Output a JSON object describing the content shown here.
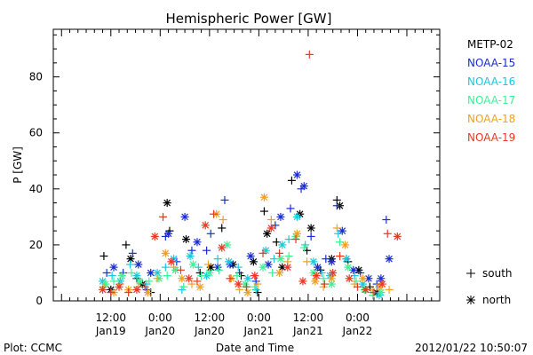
{
  "chart_data": {
    "type": "scatter",
    "title": "Hemispheric Power [GW]",
    "xlabel": "Date and Time",
    "ylabel": "P [GW]",
    "ylim": [
      0,
      97
    ],
    "xlim": [
      -2,
      92
    ],
    "x_unit": "hours since 2012-01-19 00:00",
    "yticks": [
      0,
      20,
      40,
      60,
      80
    ],
    "xticks": [
      {
        "x": 12,
        "label": "12:00",
        "sublabel": "Jan19"
      },
      {
        "x": 24,
        "label": "0:00",
        "sublabel": "Jan20"
      },
      {
        "x": 36,
        "label": "12:00",
        "sublabel": "Jan20"
      },
      {
        "x": 48,
        "label": "0:00",
        "sublabel": "Jan21"
      },
      {
        "x": 60,
        "label": "12:00",
        "sublabel": "Jan21"
      },
      {
        "x": 72,
        "label": "0:00",
        "sublabel": "Jan22"
      }
    ],
    "legend_position": "right",
    "symbol_legend": {
      "south": "south",
      "north": "north"
    },
    "footer_left": "Plot: CCMC",
    "footer_right": "2012/01/22 10:50:07",
    "series": [
      {
        "name": "METP-02",
        "color": "#000000",
        "points": [
          [
            10.3,
            16,
            "s"
          ],
          [
            12.0,
            4,
            "n"
          ],
          [
            15.7,
            20,
            "s"
          ],
          [
            16.8,
            15,
            "n"
          ],
          [
            18.3,
            8,
            "s"
          ],
          [
            19.7,
            6,
            "n"
          ],
          [
            21.7,
            3,
            "s"
          ],
          [
            25.7,
            35,
            "n"
          ],
          [
            26.3,
            25,
            "s"
          ],
          [
            30.3,
            22,
            "n"
          ],
          [
            33.7,
            10,
            "s"
          ],
          [
            36.3,
            12,
            "n"
          ],
          [
            39.0,
            26,
            "s"
          ],
          [
            41.7,
            13,
            "n"
          ],
          [
            43.7,
            9,
            "s"
          ],
          [
            46.7,
            14,
            "n"
          ],
          [
            47.7,
            3,
            "s"
          ],
          [
            49.3,
            32,
            "s"
          ],
          [
            50.0,
            24,
            "n"
          ],
          [
            52.3,
            21,
            "s"
          ],
          [
            53.7,
            12,
            "n"
          ],
          [
            56.0,
            43,
            "s"
          ],
          [
            58.0,
            31,
            "n"
          ],
          [
            59.7,
            18,
            "s"
          ],
          [
            60.7,
            26,
            "n"
          ],
          [
            63.0,
            11,
            "s"
          ],
          [
            65.7,
            15,
            "n"
          ],
          [
            67.0,
            36,
            "s"
          ],
          [
            67.7,
            34,
            "n"
          ],
          [
            69.7,
            14,
            "s"
          ],
          [
            72.3,
            11,
            "n"
          ],
          [
            75.0,
            5,
            "s"
          ],
          [
            76.7,
            3,
            "n"
          ]
        ]
      },
      {
        "name": "NOAA-15",
        "color": "#1a2dd0",
        "points": [
          [
            11.0,
            10,
            "s"
          ],
          [
            12.7,
            12,
            "n"
          ],
          [
            15.0,
            10,
            "s"
          ],
          [
            17.3,
            17,
            "s"
          ],
          [
            18.7,
            13,
            "n"
          ],
          [
            20.7,
            4,
            "s"
          ],
          [
            21.7,
            10,
            "n"
          ],
          [
            25.3,
            23,
            "s"
          ],
          [
            26.0,
            24,
            "n"
          ],
          [
            28.0,
            14,
            "s"
          ],
          [
            30.0,
            30,
            "n"
          ],
          [
            31.7,
            18,
            "s"
          ],
          [
            33.0,
            21,
            "n"
          ],
          [
            35.3,
            18,
            "s"
          ],
          [
            36.3,
            24,
            "s"
          ],
          [
            38.0,
            12,
            "n"
          ],
          [
            39.7,
            36,
            "s"
          ],
          [
            41.0,
            13,
            "n"
          ],
          [
            43.3,
            10,
            "s"
          ],
          [
            46.0,
            16,
            "n"
          ],
          [
            47.3,
            7,
            "s"
          ],
          [
            50.3,
            13,
            "n"
          ],
          [
            52.0,
            27,
            "s"
          ],
          [
            53.3,
            30,
            "n"
          ],
          [
            55.7,
            33,
            "s"
          ],
          [
            57.3,
            45,
            "n"
          ],
          [
            58.3,
            40,
            "s"
          ],
          [
            59.0,
            41,
            "n"
          ],
          [
            60.7,
            23,
            "s"
          ],
          [
            62.3,
            12,
            "n"
          ],
          [
            64.3,
            15,
            "s"
          ],
          [
            65.7,
            14,
            "n"
          ],
          [
            67.0,
            34,
            "s"
          ],
          [
            68.3,
            25,
            "n"
          ],
          [
            69.3,
            15,
            "s"
          ],
          [
            71.0,
            11,
            "n"
          ],
          [
            72.7,
            10,
            "s"
          ],
          [
            74.7,
            8,
            "n"
          ],
          [
            76.7,
            6,
            "s"
          ],
          [
            77.7,
            8,
            "n"
          ],
          [
            79.0,
            29,
            "s"
          ],
          [
            79.7,
            15,
            "n"
          ]
        ]
      },
      {
        "name": "NOAA-16",
        "color": "#18c8e0",
        "points": [
          [
            10.0,
            7,
            "n"
          ],
          [
            12.3,
            9,
            "s"
          ],
          [
            14.3,
            7,
            "n"
          ],
          [
            16.7,
            13,
            "s"
          ],
          [
            18.3,
            9,
            "n"
          ],
          [
            20.7,
            6,
            "s"
          ],
          [
            23.3,
            10,
            "n"
          ],
          [
            25.3,
            12,
            "s"
          ],
          [
            27.3,
            15,
            "n"
          ],
          [
            29.3,
            4,
            "s"
          ],
          [
            31.3,
            16,
            "n"
          ],
          [
            33.3,
            12,
            "s"
          ],
          [
            35.3,
            9,
            "n"
          ],
          [
            38.0,
            15,
            "s"
          ],
          [
            40.7,
            14,
            "n"
          ],
          [
            43.0,
            12,
            "s"
          ],
          [
            45.3,
            8,
            "n"
          ],
          [
            47.3,
            4,
            "s"
          ],
          [
            49.7,
            18,
            "n"
          ],
          [
            51.7,
            15,
            "s"
          ],
          [
            53.7,
            20,
            "n"
          ],
          [
            55.3,
            22,
            "s"
          ],
          [
            57.3,
            30,
            "n"
          ],
          [
            59.3,
            20,
            "s"
          ],
          [
            61.3,
            14,
            "n"
          ],
          [
            63.3,
            10,
            "s"
          ],
          [
            65.3,
            9,
            "n"
          ],
          [
            67.3,
            24,
            "s"
          ],
          [
            69.3,
            15,
            "n"
          ],
          [
            71.3,
            9,
            "s"
          ],
          [
            73.3,
            6,
            "n"
          ],
          [
            75.7,
            3,
            "s"
          ],
          [
            77.3,
            2,
            "n"
          ]
        ]
      },
      {
        "name": "NOAA-17",
        "color": "#3cf096",
        "points": [
          [
            10.7,
            6,
            "n"
          ],
          [
            12.7,
            7,
            "s"
          ],
          [
            14.7,
            9,
            "n"
          ],
          [
            17.0,
            10,
            "s"
          ],
          [
            19.0,
            7,
            "n"
          ],
          [
            21.3,
            7,
            "s"
          ],
          [
            23.7,
            8,
            "n"
          ],
          [
            25.7,
            9,
            "s"
          ],
          [
            27.7,
            11,
            "n"
          ],
          [
            29.7,
            5,
            "s"
          ],
          [
            32.0,
            13,
            "n"
          ],
          [
            34.0,
            9,
            "s"
          ],
          [
            36.0,
            10,
            "n"
          ],
          [
            38.3,
            11,
            "s"
          ],
          [
            40.3,
            20,
            "n"
          ],
          [
            42.7,
            9,
            "s"
          ],
          [
            44.7,
            6,
            "n"
          ],
          [
            47.0,
            5,
            "s"
          ],
          [
            49.0,
            12,
            "n"
          ],
          [
            51.3,
            10,
            "s"
          ],
          [
            53.3,
            15,
            "n"
          ],
          [
            55.3,
            16,
            "s"
          ],
          [
            57.0,
            23,
            "n"
          ],
          [
            59.0,
            19,
            "s"
          ],
          [
            61.3,
            10,
            "n"
          ],
          [
            63.7,
            8,
            "s"
          ],
          [
            65.7,
            6,
            "n"
          ],
          [
            67.7,
            21,
            "s"
          ],
          [
            69.7,
            12,
            "n"
          ],
          [
            71.7,
            7,
            "s"
          ],
          [
            73.7,
            4,
            "n"
          ],
          [
            75.7,
            2,
            "s"
          ],
          [
            77.7,
            3,
            "n"
          ]
        ]
      },
      {
        "name": "NOAA-18",
        "color": "#f0a020",
        "points": [
          [
            10.3,
            5,
            "s"
          ],
          [
            12.7,
            3,
            "n"
          ],
          [
            14.3,
            6,
            "s"
          ],
          [
            16.3,
            4,
            "n"
          ],
          [
            18.7,
            5,
            "s"
          ],
          [
            21.0,
            3,
            "n"
          ],
          [
            23.3,
            8,
            "s"
          ],
          [
            25.3,
            17,
            "n"
          ],
          [
            27.3,
            12,
            "s"
          ],
          [
            29.3,
            8,
            "n"
          ],
          [
            31.7,
            6,
            "s"
          ],
          [
            33.7,
            5,
            "n"
          ],
          [
            35.7,
            13,
            "s"
          ],
          [
            37.7,
            31,
            "n"
          ],
          [
            39.3,
            29,
            "s"
          ],
          [
            41.3,
            8,
            "n"
          ],
          [
            43.3,
            4,
            "s"
          ],
          [
            45.3,
            3,
            "n"
          ],
          [
            47.7,
            6,
            "s"
          ],
          [
            49.3,
            37,
            "n"
          ],
          [
            51.0,
            29,
            "s"
          ],
          [
            53.0,
            10,
            "n"
          ],
          [
            55.0,
            14,
            "s"
          ],
          [
            57.3,
            24,
            "n"
          ],
          [
            59.7,
            14,
            "s"
          ],
          [
            61.7,
            7,
            "n"
          ],
          [
            63.7,
            5,
            "s"
          ],
          [
            65.7,
            8,
            "n"
          ],
          [
            67.0,
            26,
            "s"
          ],
          [
            69.0,
            20,
            "n"
          ],
          [
            71.3,
            6,
            "s"
          ],
          [
            73.3,
            8,
            "n"
          ],
          [
            75.3,
            4,
            "s"
          ],
          [
            77.3,
            5,
            "n"
          ],
          [
            79.7,
            4,
            "s"
          ]
        ]
      },
      {
        "name": "NOAA-19",
        "color": "#e83820",
        "points": [
          [
            10.0,
            4,
            "n"
          ],
          [
            12.0,
            3,
            "s"
          ],
          [
            14.0,
            5,
            "n"
          ],
          [
            16.3,
            3,
            "s"
          ],
          [
            18.3,
            4,
            "n"
          ],
          [
            20.3,
            5,
            "s"
          ],
          [
            22.7,
            23,
            "n"
          ],
          [
            24.7,
            30,
            "s"
          ],
          [
            26.7,
            14,
            "n"
          ],
          [
            29.0,
            11,
            "s"
          ],
          [
            31.0,
            8,
            "n"
          ],
          [
            33.0,
            7,
            "s"
          ],
          [
            35.0,
            27,
            "n"
          ],
          [
            37.0,
            31,
            "s"
          ],
          [
            39.0,
            19,
            "n"
          ],
          [
            41.0,
            8,
            "s"
          ],
          [
            43.0,
            6,
            "n"
          ],
          [
            45.0,
            5,
            "s"
          ],
          [
            47.0,
            9,
            "n"
          ],
          [
            49.0,
            17,
            "s"
          ],
          [
            51.0,
            26,
            "n"
          ],
          [
            53.0,
            17,
            "s"
          ],
          [
            55.0,
            12,
            "n"
          ],
          [
            57.0,
            22,
            "s"
          ],
          [
            58.7,
            7,
            "n"
          ],
          [
            60.3,
            88,
            "s"
          ],
          [
            62.0,
            9,
            "n"
          ],
          [
            64.0,
            6,
            "s"
          ],
          [
            66.0,
            10,
            "n"
          ],
          [
            67.7,
            16,
            "s"
          ],
          [
            70.0,
            8,
            "n"
          ],
          [
            72.0,
            5,
            "s"
          ],
          [
            74.0,
            4,
            "n"
          ],
          [
            76.0,
            3,
            "s"
          ],
          [
            78.0,
            6,
            "n"
          ],
          [
            79.3,
            24,
            "s"
          ],
          [
            81.7,
            23,
            "n"
          ]
        ]
      }
    ]
  }
}
